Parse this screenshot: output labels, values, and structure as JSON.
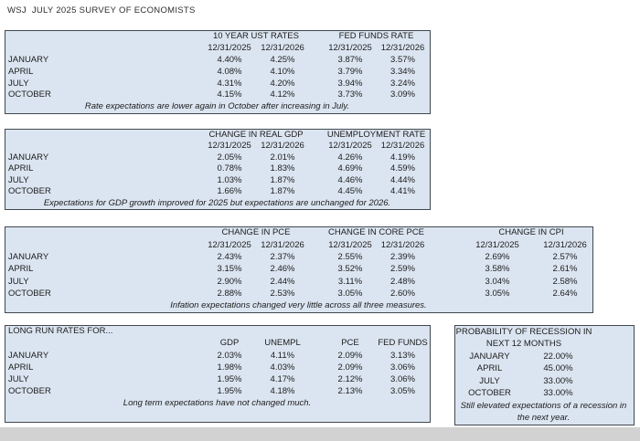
{
  "title": "WSJ  JULY 2025 SURVEY OF ECONOMISTS",
  "colors": {
    "table_fill": "#dbe5f1",
    "table_border": "#41474f",
    "bottom_strip": "#d2d2d2",
    "text": "#1c1c1c"
  },
  "rates_table": {
    "group_ust": "10 YEAR UST RATES",
    "group_fed": "FED FUNDS RATE",
    "dates": [
      "12/31/2025",
      "12/31/2026",
      "12/31/2025",
      "12/31/2026"
    ],
    "rows": [
      {
        "label": "JANUARY",
        "v": [
          "4.40%",
          "4.25%",
          "3.87%",
          "3.57%"
        ]
      },
      {
        "label": "APRIL",
        "v": [
          "4.08%",
          "4.10%",
          "3.79%",
          "3.34%"
        ]
      },
      {
        "label": "JULY",
        "v": [
          "4.31%",
          "4.20%",
          "3.94%",
          "3.24%"
        ]
      },
      {
        "label": "OCTOBER",
        "v": [
          "4.15%",
          "4.12%",
          "3.73%",
          "3.09%"
        ]
      }
    ],
    "note": "Rate expectations are lower again in October after increasing in July."
  },
  "gdp_unemp_table": {
    "group_gdp": "CHANGE IN REAL GDP",
    "group_unemp": "UNEMPLOYMENT RATE",
    "dates": [
      "12/31/2025",
      "12/31/2026",
      "12/31/2025",
      "12/31/2026"
    ],
    "rows": [
      {
        "label": "JANUARY",
        "v": [
          "2.05%",
          "2.01%",
          "4.26%",
          "4.19%"
        ]
      },
      {
        "label": "APRIL",
        "v": [
          "0.78%",
          "1.83%",
          "4.69%",
          "4.59%"
        ]
      },
      {
        "label": "JULY",
        "v": [
          "1.03%",
          "1.87%",
          "4.46%",
          "4.44%"
        ]
      },
      {
        "label": "OCTOBER",
        "v": [
          "1.66%",
          "1.87%",
          "4.45%",
          "4.41%"
        ]
      }
    ],
    "note": "Expectations for GDP growth improved for 2025 but expectations are unchanged for 2026."
  },
  "inflation_table": {
    "group_pce": "CHANGE IN PCE",
    "group_core_pce": "CHANGE IN CORE PCE",
    "group_cpi": "CHANGE IN CPI",
    "dates": [
      "12/31/2025",
      "12/31/2026",
      "12/31/2025",
      "12/31/2026",
      "12/31/2025",
      "12/31/2026"
    ],
    "rows": [
      {
        "label": "JANUARY",
        "v": [
          "2.43%",
          "2.37%",
          "2.55%",
          "2.39%",
          "2.69%",
          "2.57%"
        ]
      },
      {
        "label": "APRIL",
        "v": [
          "3.15%",
          "2.46%",
          "3.52%",
          "2.59%",
          "3.58%",
          "2.61%"
        ]
      },
      {
        "label": "JULY",
        "v": [
          "2.90%",
          "2.44%",
          "3.11%",
          "2.48%",
          "3.04%",
          "2.58%"
        ]
      },
      {
        "label": "OCTOBER",
        "v": [
          "2.88%",
          "2.53%",
          "3.05%",
          "2.60%",
          "3.05%",
          "2.64%"
        ]
      }
    ],
    "note": "Infation expectations changed very little across all three measures."
  },
  "long_run_table": {
    "title": "LONG RUN RATES FOR...",
    "headers": [
      "GDP",
      "UNEMPL",
      "PCE",
      "FED FUNDS"
    ],
    "rows": [
      {
        "label": "JANUARY",
        "v": [
          "2.03%",
          "4.11%",
          "2.09%",
          "3.13%"
        ]
      },
      {
        "label": "APRIL",
        "v": [
          "1.98%",
          "4.03%",
          "2.09%",
          "3.06%"
        ]
      },
      {
        "label": "JULY",
        "v": [
          "1.95%",
          "4.17%",
          "2.12%",
          "3.06%"
        ]
      },
      {
        "label": "OCTOBER",
        "v": [
          "1.95%",
          "4.18%",
          "2.13%",
          "3.05%"
        ]
      }
    ],
    "note": "Long term expectations have not changed much."
  },
  "recession_table": {
    "title_line1": "PROBABILITY OF RECESSION IN",
    "title_line2": "NEXT 12 MONTHS",
    "rows": [
      {
        "label": "JANUARY",
        "v": "22.00%"
      },
      {
        "label": "APRIL",
        "v": "45.00%"
      },
      {
        "label": "JULY",
        "v": "33.00%"
      },
      {
        "label": "OCTOBER",
        "v": "33.00%"
      }
    ],
    "note": "Still elevated expectations of a recession in the next year."
  }
}
